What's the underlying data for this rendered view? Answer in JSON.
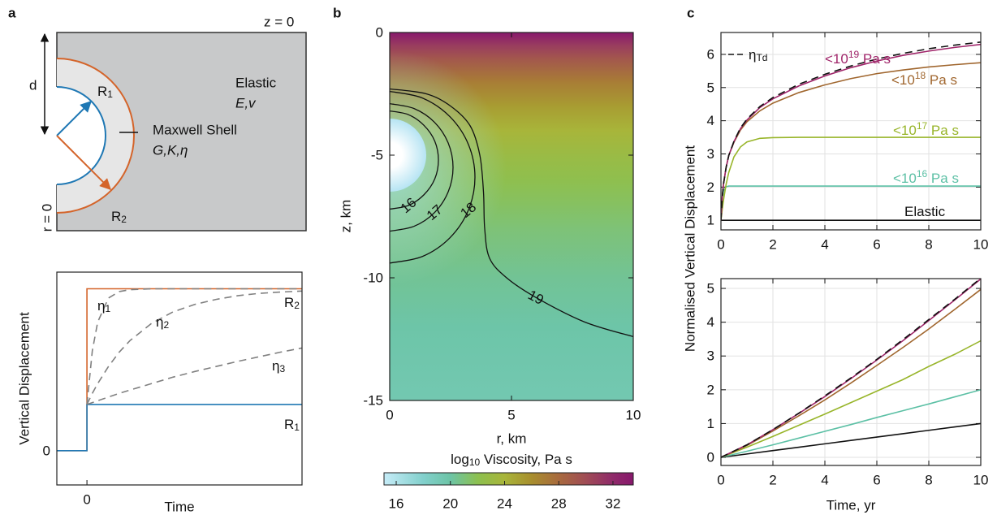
{
  "panel_labels": [
    "a",
    "b",
    "c"
  ],
  "diagram": {
    "surface": "z = 0",
    "axis": "r = 0",
    "depth": "d",
    "elastic_title": "Elastic",
    "elastic_params": "E,v",
    "shell_title": "Maxwell Shell",
    "shell_params": "G,K,η",
    "r1": {
      "text": "R",
      "sub": "1"
    },
    "r2": {
      "text": "R",
      "sub": "2"
    }
  },
  "chart_data": [
    {
      "type": "line",
      "x_label": "Time",
      "y_label": "Vertical Displacement",
      "xlim": [
        -1.4,
        10
      ],
      "ylim": [
        -0.74,
        3.86
      ],
      "xticks": [
        0
      ],
      "yticks": [
        0
      ],
      "series": [
        {
          "color": "#d4642a",
          "x": [
            -1.4,
            0,
            0,
            10
          ],
          "values": [
            0,
            0,
            3.5,
            3.5
          ]
        },
        {
          "color": "#1f78b4",
          "x": [
            -1.4,
            0,
            0,
            10
          ],
          "values": [
            0,
            0,
            1,
            1
          ]
        },
        {
          "color": "#808080",
          "dash": true,
          "x": [
            0,
            0.25,
            0.5,
            1,
            1.5,
            2,
            3,
            4,
            5,
            6,
            7,
            8,
            9,
            10
          ],
          "values": [
            1,
            2.16,
            2.78,
            3.3,
            3.44,
            3.48,
            3.5,
            3.5,
            3.5,
            3.5,
            3.5,
            3.5,
            3.5,
            3.5
          ]
        },
        {
          "color": "#808080",
          "dash": true,
          "x": [
            0,
            0.25,
            0.5,
            1,
            1.5,
            2,
            3,
            4,
            5,
            6,
            7,
            8,
            9,
            10
          ],
          "values": [
            1,
            1.24,
            1.45,
            1.82,
            2.13,
            2.38,
            2.75,
            3.0,
            3.16,
            3.27,
            3.35,
            3.4,
            3.43,
            3.45
          ]
        },
        {
          "color": "#808080",
          "dash": true,
          "x": [
            0,
            0.25,
            0.5,
            1,
            1.5,
            2,
            3,
            4,
            5,
            6,
            7,
            8,
            9,
            10
          ],
          "values": [
            1,
            1.04,
            1.08,
            1.16,
            1.24,
            1.31,
            1.45,
            1.59,
            1.71,
            1.82,
            1.93,
            2.03,
            2.13,
            2.22
          ]
        }
      ],
      "annotations": [
        {
          "text": "η",
          "sub": "1"
        },
        {
          "text": "η",
          "sub": "2"
        },
        {
          "text": "η",
          "sub": "3"
        },
        {
          "text": "R",
          "sub": "2"
        },
        {
          "text": "R",
          "sub": "1"
        }
      ]
    },
    {
      "type": "heatmap",
      "x_label": "r, km",
      "y_label": "z, km",
      "xlim": [
        0,
        10
      ],
      "ylim": [
        -15,
        0
      ],
      "xticks": [
        0,
        5,
        10
      ],
      "yticks": [
        0,
        -5,
        -10,
        -15
      ],
      "profile": {
        "z": [
          0,
          -0.5,
          -1,
          -2,
          -3,
          -4,
          -5,
          -6,
          -7,
          -8,
          -10,
          -12,
          -15
        ],
        "values": [
          33.5,
          31,
          29.5,
          27,
          25.3,
          24,
          23,
          22.2,
          21.6,
          21.1,
          20.4,
          19.9,
          19.4
        ]
      },
      "chamber": {
        "z": -5,
        "radius": 1.5
      },
      "colormap": [
        {
          "value": 15.1,
          "color": "#c6ecf8"
        },
        {
          "value": 18,
          "color": "#82d0cc"
        },
        {
          "value": 20,
          "color": "#6cc4a6"
        },
        {
          "value": 22,
          "color": "#8cc050"
        },
        {
          "value": 24,
          "color": "#a8b53a"
        },
        {
          "value": 26,
          "color": "#a88e2e"
        },
        {
          "value": 28,
          "color": "#a86a3e"
        },
        {
          "value": 30,
          "color": "#a04c55"
        },
        {
          "value": 32,
          "color": "#8f2a6a"
        },
        {
          "value": 33.5,
          "color": "#88186c"
        }
      ],
      "colorbar": {
        "label": {
          "text": "log",
          "sub": "10",
          "rest": " Viscosity, Pa s"
        },
        "lim": [
          15.1,
          33.5
        ],
        "ticks": [
          16,
          20,
          24,
          28,
          32
        ]
      },
      "contours": [
        {
          "level": 16,
          "r": [
            0,
            0.77,
            1.41,
            1.85,
            2,
            1.85,
            1.41,
            0.77,
            0
          ],
          "z": [
            -3.2,
            -3.35,
            -3.79,
            -4.43,
            -5.2,
            -5.97,
            -6.61,
            -7.05,
            -7.2
          ]
        },
        {
          "level": 17,
          "r": [
            0,
            1.0,
            1.84,
            2.4,
            2.6,
            2.4,
            1.84,
            1.0,
            0
          ],
          "z": [
            -2.9,
            -3.1,
            -3.66,
            -4.5,
            -5.5,
            -6.5,
            -7.34,
            -7.9,
            -8.1
          ]
        },
        {
          "level": 18,
          "r": [
            0,
            1.34,
            2.47,
            3.23,
            3.5,
            3.23,
            2.47,
            1.34,
            0
          ],
          "z": [
            -2.4,
            -2.67,
            -3.43,
            -4.56,
            -5.9,
            -7.24,
            -8.37,
            -9.13,
            -9.4
          ]
        },
        {
          "level": 19,
          "r": [
            0,
            1.5,
            2.5,
            3.3,
            3.7,
            3.85,
            3.9,
            4.1,
            4.8,
            6,
            8,
            10
          ],
          "z": [
            -2.3,
            -2.5,
            -3,
            -3.8,
            -5,
            -6.5,
            -8,
            -9.2,
            -10,
            -10.8,
            -11.8,
            -12.4
          ]
        }
      ]
    },
    {
      "type": "line",
      "y_label": "Normalised Vertical Displacement",
      "xlim": [
        0,
        10
      ],
      "ylim": [
        0.71,
        6.66
      ],
      "xticks": [
        0,
        2,
        4,
        6,
        8,
        10
      ],
      "yticks": [
        1,
        2,
        3,
        4,
        5,
        6
      ],
      "grid": true,
      "legend": "upper left",
      "x": [
        0,
        0.05,
        0.1,
        0.2,
        0.3,
        0.5,
        0.75,
        1,
        1.5,
        2,
        3,
        4,
        5,
        6,
        7,
        8,
        9,
        10
      ],
      "series": [
        {
          "color": "#111111",
          "values": [
            1,
            1,
            1,
            1,
            1,
            1,
            1,
            1,
            1,
            1,
            1,
            1,
            1,
            1,
            1,
            1,
            1,
            1
          ]
        },
        {
          "color": "#5cc0a5",
          "values": [
            1,
            1.65,
            1.89,
            2.01,
            2.03,
            2.03,
            2.03,
            2.03,
            2.03,
            2.03,
            2.03,
            2.03,
            2.03,
            2.03,
            2.03,
            2.03,
            2.03,
            2.03
          ]
        },
        {
          "color": "#98b52a",
          "values": [
            1,
            1.33,
            1.62,
            2.09,
            2.44,
            2.91,
            3.21,
            3.36,
            3.47,
            3.49,
            3.5,
            3.5,
            3.5,
            3.5,
            3.5,
            3.5,
            3.5,
            3.5
          ]
        },
        {
          "color": "#a0662e",
          "values": [
            1,
            1.7,
            2.1,
            2.6,
            2.95,
            3.35,
            3.72,
            3.97,
            4.3,
            4.53,
            4.85,
            5.08,
            5.27,
            5.42,
            5.53,
            5.62,
            5.69,
            5.75
          ]
        },
        {
          "color": "#a0256a",
          "values": [
            1,
            1.7,
            2.1,
            2.6,
            2.95,
            3.37,
            3.76,
            4.02,
            4.4,
            4.66,
            5.05,
            5.35,
            5.6,
            5.8,
            5.97,
            6.1,
            6.21,
            6.3
          ]
        },
        {
          "name": {
            "text": "η",
            "sub": "Td"
          },
          "color": "#111111",
          "dash": true,
          "values": [
            1,
            1.7,
            2.1,
            2.6,
            2.95,
            3.38,
            3.78,
            4.05,
            4.43,
            4.7,
            5.1,
            5.4,
            5.65,
            5.86,
            6.03,
            6.17,
            6.28,
            6.37
          ]
        }
      ],
      "annotations": [
        {
          "text": "<10",
          "sup": "19",
          "rest": " Pa s",
          "color": "#a0256a"
        },
        {
          "text": "<10",
          "sup": "18",
          "rest": " Pa s",
          "color": "#a0662e"
        },
        {
          "text": "<10",
          "sup": "17",
          "rest": " Pa s",
          "color": "#98b52a"
        },
        {
          "text": "<10",
          "sup": "16",
          "rest": " Pa s",
          "color": "#5cc0a5"
        },
        {
          "text": "Elastic",
          "color": "#111111"
        }
      ]
    },
    {
      "type": "line",
      "x_label": "Time, yr",
      "xlim": [
        0,
        10
      ],
      "ylim": [
        -0.24,
        5.29
      ],
      "xticks": [
        0,
        2,
        4,
        6,
        8,
        10
      ],
      "yticks": [
        0,
        1,
        2,
        3,
        4,
        5
      ],
      "grid": true,
      "x": [
        0,
        1,
        2,
        3,
        4,
        5,
        6,
        7,
        8,
        9,
        10
      ],
      "series": [
        {
          "color": "#111111",
          "values": [
            0,
            0.1,
            0.2,
            0.3,
            0.4,
            0.5,
            0.6,
            0.7,
            0.8,
            0.9,
            1
          ]
        },
        {
          "color": "#5cc0a5",
          "values": [
            0,
            0.18,
            0.37,
            0.57,
            0.77,
            0.97,
            1.18,
            1.38,
            1.58,
            1.79,
            2.0
          ]
        },
        {
          "color": "#98b52a",
          "values": [
            0,
            0.3,
            0.62,
            0.95,
            1.28,
            1.62,
            1.96,
            2.3,
            2.69,
            3.05,
            3.45
          ]
        },
        {
          "color": "#a0662e",
          "values": [
            0,
            0.35,
            0.78,
            1.23,
            1.7,
            2.2,
            2.72,
            3.25,
            3.8,
            4.38,
            4.97
          ]
        },
        {
          "color": "#a0256a",
          "values": [
            0,
            0.37,
            0.82,
            1.3,
            1.8,
            2.33,
            2.88,
            3.45,
            4.05,
            4.66,
            5.28
          ]
        },
        {
          "color": "#111111",
          "dash": true,
          "values": [
            0,
            0.37,
            0.82,
            1.31,
            1.82,
            2.35,
            2.9,
            3.48,
            4.08,
            4.68,
            5.3
          ]
        }
      ]
    }
  ]
}
